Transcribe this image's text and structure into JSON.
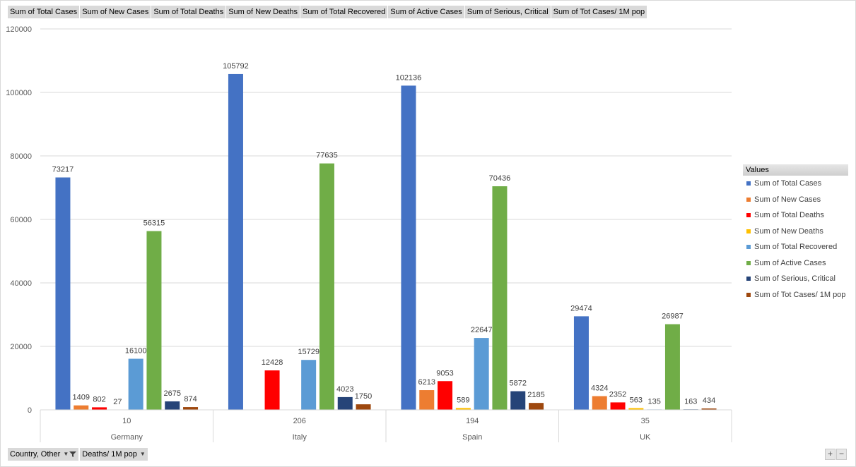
{
  "value_fields": [
    "Sum of Total Cases",
    "Sum of New Cases",
    "Sum of Total Deaths",
    "Sum of New Deaths",
    "Sum of Total Recovered",
    "Sum of Active Cases",
    "Sum of Serious, Critical",
    "Sum of Tot Cases/ 1M pop"
  ],
  "axis_fields": {
    "country": "Country, Other",
    "deaths": "Deaths/ 1M pop"
  },
  "legend": {
    "title": "Values"
  },
  "zoom": {
    "plus": "+",
    "minus": "−"
  },
  "chart_data": {
    "type": "bar",
    "categories": [
      {
        "outer": "Germany",
        "inner": "10"
      },
      {
        "outer": "Italy",
        "inner": "206"
      },
      {
        "outer": "Spain",
        "inner": "194"
      },
      {
        "outer": "UK",
        "inner": "35"
      }
    ],
    "series": [
      {
        "name": "Sum of Total Cases",
        "color": "#4472C4",
        "values": [
          73217,
          105792,
          102136,
          29474
        ]
      },
      {
        "name": "Sum of New Cases",
        "color": "#ED7D31",
        "values": [
          1409,
          null,
          6213,
          4324
        ]
      },
      {
        "name": "Sum of Total Deaths",
        "color": "#FF0000",
        "values": [
          802,
          12428,
          9053,
          2352
        ]
      },
      {
        "name": "Sum of New Deaths",
        "color": "#FFC000",
        "values": [
          27,
          null,
          589,
          563
        ]
      },
      {
        "name": "Sum of Total Recovered",
        "color": "#5B9BD5",
        "values": [
          16100,
          15729,
          22647,
          135
        ]
      },
      {
        "name": "Sum of Active Cases",
        "color": "#70AD47",
        "values": [
          56315,
          77635,
          70436,
          26987
        ]
      },
      {
        "name": "Sum of Serious, Critical",
        "color": "#264478",
        "values": [
          2675,
          4023,
          5872,
          163
        ]
      },
      {
        "name": "Sum of Tot Cases/ 1M pop",
        "color": "#9E480E",
        "values": [
          874,
          1750,
          2185,
          434
        ]
      }
    ],
    "ylim": [
      0,
      120000
    ],
    "yticks": [
      0,
      20000,
      40000,
      60000,
      80000,
      100000,
      120000
    ],
    "grid": true,
    "legend_position": "right"
  }
}
